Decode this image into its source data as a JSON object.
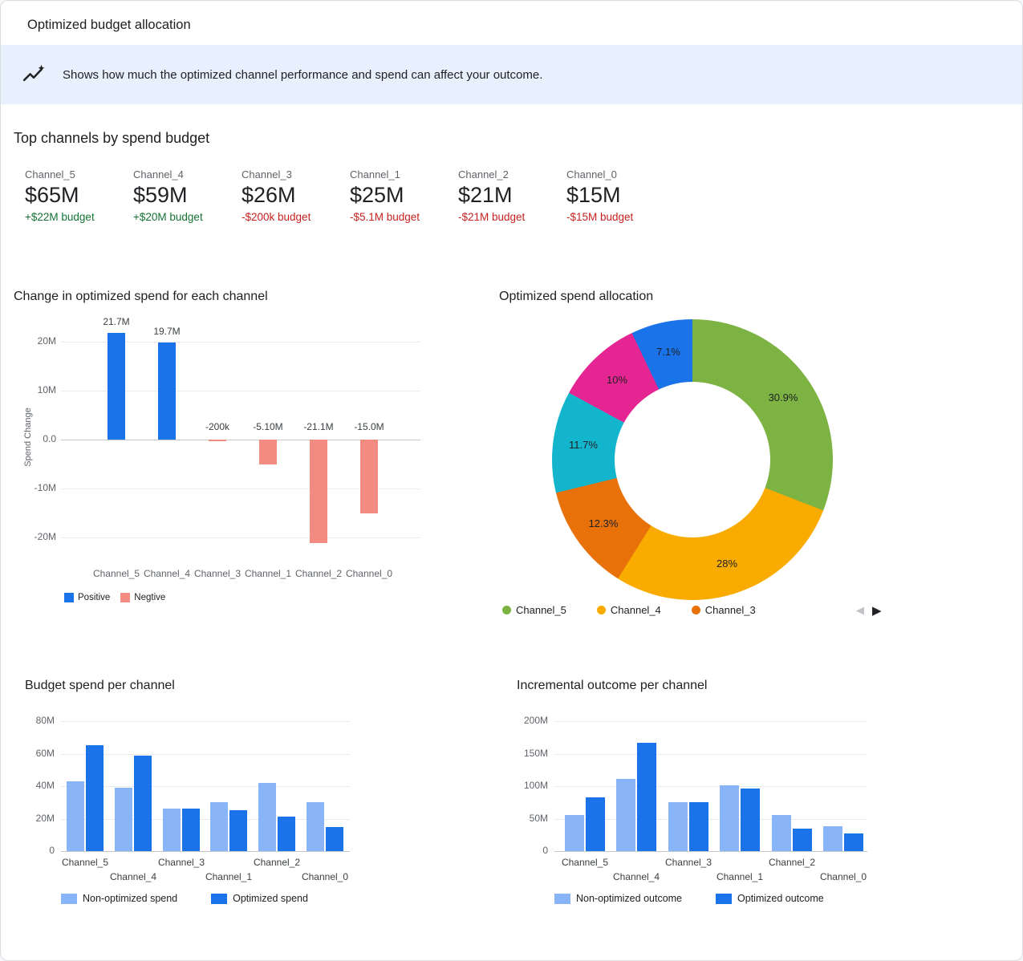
{
  "colors": {
    "positive_bar": "#1a73e8",
    "negative_bar": "#f28b82",
    "light_blue": "#8ab4f8",
    "dark_blue": "#1a73e8",
    "green_text": "#137333",
    "red_text": "#c5221f",
    "banner_bg": "#e8f0fe"
  },
  "header": {
    "title": "Optimized budget allocation"
  },
  "banner": {
    "icon": "insights-icon",
    "text": "Shows how much the optimized channel performance and spend can affect your outcome."
  },
  "top_channels": {
    "title": "Top channels by spend budget",
    "cards": [
      {
        "channel": "Channel_5",
        "value": "$65M",
        "delta": "+$22M budget",
        "trend": "positive"
      },
      {
        "channel": "Channel_4",
        "value": "$59M",
        "delta": "+$20M budget",
        "trend": "positive"
      },
      {
        "channel": "Channel_3",
        "value": "$26M",
        "delta": "-$200k budget",
        "trend": "negative"
      },
      {
        "channel": "Channel_1",
        "value": "$25M",
        "delta": "-$5.1M budget",
        "trend": "negative"
      },
      {
        "channel": "Channel_2",
        "value": "$21M",
        "delta": "-$21M budget",
        "trend": "negative"
      },
      {
        "channel": "Channel_0",
        "value": "$15M",
        "delta": "-$15M budget",
        "trend": "negative"
      }
    ]
  },
  "chart_data": [
    {
      "id": "spend_change",
      "type": "bar",
      "title": "Change in optimized spend for each channel",
      "ylabel": "Spend Change",
      "categories": [
        "Channel_5",
        "Channel_4",
        "Channel_3",
        "Channel_1",
        "Channel_2",
        "Channel_0"
      ],
      "values_millions": [
        21.7,
        19.7,
        -0.2,
        -5.1,
        -21.1,
        -15.0
      ],
      "bar_labels": [
        "21.7M",
        "19.7M",
        "-200k",
        "-5.10M",
        "-21.1M",
        "-15.0M"
      ],
      "ylim": [
        -25,
        25
      ],
      "yticks": [
        {
          "v": 20,
          "label": "20M"
        },
        {
          "v": 10,
          "label": "10M"
        },
        {
          "v": 0,
          "label": "0.0"
        },
        {
          "v": -10,
          "label": "-10M"
        },
        {
          "v": -20,
          "label": "-20M"
        }
      ],
      "legend": [
        {
          "label": "Positive",
          "color": "#1a73e8"
        },
        {
          "label": "Negtive",
          "color": "#f28b82"
        }
      ]
    },
    {
      "id": "spend_allocation",
      "type": "pie",
      "title": "Optimized spend allocation",
      "slices": [
        {
          "display": "30.9%",
          "value": 30.9,
          "color": "#7cb342"
        },
        {
          "display": "28%",
          "value": 28,
          "color": "#f9ab00"
        },
        {
          "display": "12.3%",
          "value": 12.3,
          "color": "#e8710a"
        },
        {
          "display": "11.7%",
          "value": 11.7,
          "color": "#12b5cb"
        },
        {
          "display": "10%",
          "value": 10,
          "color": "#e52592"
        },
        {
          "display": "7.1%",
          "value": 7.1,
          "color": "#1a73e8"
        }
      ],
      "legend": [
        {
          "label": "Channel_5",
          "color": "#7cb342"
        },
        {
          "label": "Channel_4",
          "color": "#f9ab00"
        },
        {
          "label": "Channel_3",
          "color": "#e8710a"
        }
      ],
      "pagination": {
        "prev": "◀",
        "next": "▶"
      }
    },
    {
      "id": "budget_spend",
      "type": "bar",
      "title": "Budget spend per channel",
      "categories": [
        "Channel_5",
        "Channel_4",
        "Channel_3",
        "Channel_1",
        "Channel_2",
        "Channel_0"
      ],
      "series": [
        {
          "name": "Non-optimized spend",
          "color": "#8ab4f8",
          "values": [
            43,
            39,
            26,
            30,
            42,
            30
          ]
        },
        {
          "name": "Optimized spend",
          "color": "#1a73e8",
          "values": [
            65,
            59,
            26,
            25,
            21,
            15
          ]
        }
      ],
      "ylim": [
        0,
        80
      ],
      "yticks": [
        "0",
        "20M",
        "40M",
        "60M",
        "80M"
      ]
    },
    {
      "id": "incremental_outcome",
      "type": "bar",
      "title": "Incremental outcome per channel",
      "categories": [
        "Channel_5",
        "Channel_4",
        "Channel_3",
        "Channel_1",
        "Channel_2",
        "Channel_0"
      ],
      "series": [
        {
          "name": "Non-optimized outcome",
          "color": "#8ab4f8",
          "values": [
            55,
            111,
            75,
            101,
            56,
            38
          ]
        },
        {
          "name": "Optimized outcome",
          "color": "#1a73e8",
          "values": [
            83,
            167,
            75,
            96,
            34,
            27
          ]
        }
      ],
      "ylim": [
        0,
        200
      ],
      "yticks": [
        "0",
        "50M",
        "100M",
        "150M",
        "200M"
      ]
    }
  ]
}
